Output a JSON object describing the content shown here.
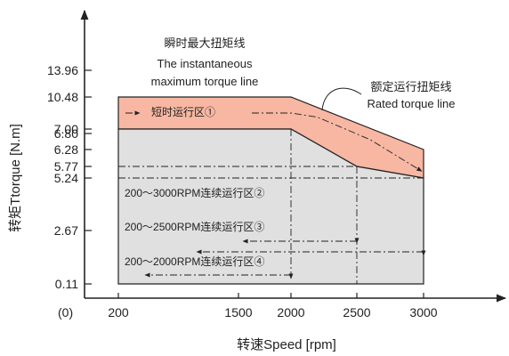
{
  "chart_data": {
    "type": "area",
    "xlabel": "转速Speed [rpm]",
    "ylabel": "转矩Ttorque [N.m]",
    "origin_label": "(0)",
    "x_ticks": [
      {
        "value": 200,
        "label": "200"
      },
      {
        "value": 1500,
        "label": "1500"
      },
      {
        "value": 2000,
        "label": "2000"
      },
      {
        "value": 2500,
        "label": "2500"
      },
      {
        "value": 3000,
        "label": "3000"
      }
    ],
    "y_ticks": [
      {
        "value": 13.96,
        "label": "13.96"
      },
      {
        "value": 10.48,
        "label": "10.48"
      },
      {
        "value": 7.0,
        "label": "7.00"
      },
      {
        "value": 6.8,
        "label": "6.80"
      },
      {
        "value": 6.28,
        "label": "6.28"
      },
      {
        "value": 5.77,
        "label": "5.77"
      },
      {
        "value": 5.24,
        "label": "5.24"
      },
      {
        "value": 2.67,
        "label": "2.67"
      },
      {
        "value": 0.11,
        "label": "0.11"
      }
    ],
    "series": [
      {
        "name": "瞬时最大扭矩线 The instantaneous maximum torque line",
        "x": [
          200,
          2000,
          3000
        ],
        "y": [
          10.48,
          10.48,
          6.28
        ]
      },
      {
        "name": "额定运行扭矩线 Rated torque line",
        "x": [
          200,
          2000,
          2500,
          3000
        ],
        "y": [
          7.0,
          7.0,
          5.77,
          5.24
        ]
      }
    ],
    "regions": [
      {
        "label": "短时运行区①",
        "color": "#f7b7a3"
      },
      {
        "label": "200～3000RPM连续运行区②",
        "speed_max": 3000,
        "torque": 5.24
      },
      {
        "label": "200～2500RPM连续运行区③",
        "speed_max": 2500,
        "torque": 5.77
      },
      {
        "label": "200～2000RPM连续运行区④",
        "speed_max": 2000,
        "torque": 7.0
      }
    ],
    "annotations": {
      "peak_cn": "瞬时最大扭矩线",
      "peak_en_1": "The instantaneous",
      "peak_en_2": "maximum torque line",
      "rated_cn": "额定运行扭矩线",
      "rated_en": "Rated torque line"
    },
    "colors": {
      "short_time_fill": "#f7b7a3",
      "continuous_fill": "#e0e0e0",
      "line": "#222222"
    }
  }
}
